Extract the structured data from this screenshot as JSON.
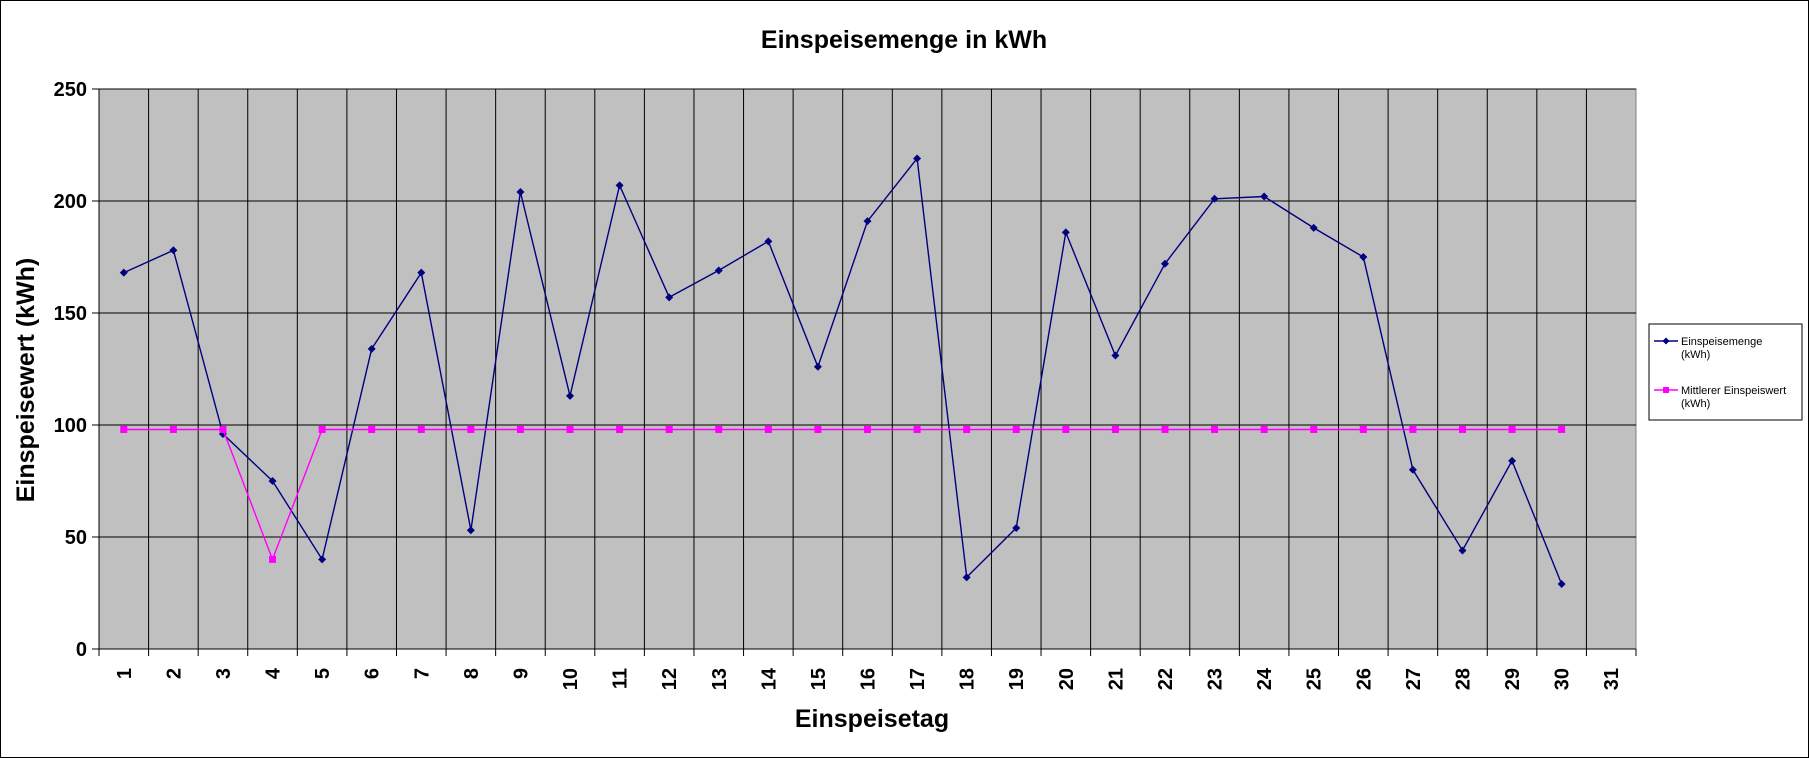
{
  "chart_data": {
    "type": "line",
    "title": "Einspeisemenge in kWh",
    "xlabel": "Einspeisetag",
    "ylabel": "Einspeisewert  (kWh)",
    "categories": [
      "1",
      "2",
      "3",
      "4",
      "5",
      "6",
      "7",
      "8",
      "9",
      "10",
      "11",
      "12",
      "13",
      "14",
      "15",
      "16",
      "17",
      "18",
      "19",
      "20",
      "21",
      "22",
      "23",
      "24",
      "25",
      "26",
      "27",
      "28",
      "29",
      "30",
      "31"
    ],
    "ylim": [
      0,
      250
    ],
    "yticks": [
      0,
      50,
      100,
      150,
      200,
      250
    ],
    "grid": true,
    "legend_position": "right",
    "series": [
      {
        "name": "Einspeisemenge (kWh)",
        "legend_lines": [
          "Einspeisemenge",
          "(kWh)"
        ],
        "color": "#000080",
        "marker": "diamond",
        "values": [
          168,
          178,
          96,
          75,
          40,
          134,
          168,
          53,
          204,
          113,
          207,
          157,
          169,
          182,
          126,
          191,
          219,
          32,
          54,
          186,
          131,
          172,
          201,
          202,
          188,
          175,
          80,
          44,
          84,
          29,
          null
        ]
      },
      {
        "name": "Mittlerer Einspeiswert (kWh)",
        "legend_lines": [
          "Mittlerer Einspeiswert",
          "(kWh)"
        ],
        "color": "#ff00ff",
        "marker": "square",
        "values": [
          98,
          98,
          98,
          40,
          98,
          98,
          98,
          98,
          98,
          98,
          98,
          98,
          98,
          98,
          98,
          98,
          98,
          98,
          98,
          98,
          98,
          98,
          98,
          98,
          98,
          98,
          98,
          98,
          98,
          98,
          null
        ]
      }
    ]
  }
}
